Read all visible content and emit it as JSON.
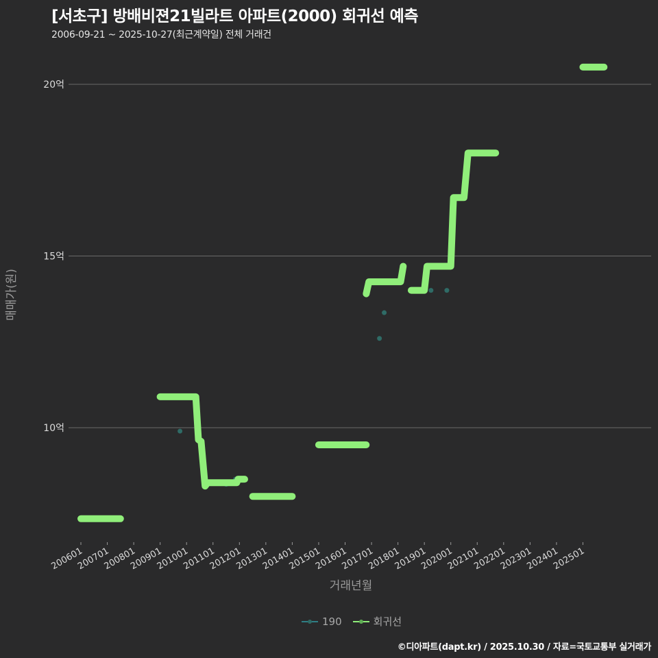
{
  "header": {
    "title": "[서초구] 방배비젼21빌라트 아파트(2000) 회귀선 예측",
    "subtitle": "2006-09-21 ~ 2025-10-27(최근계약일) 전체 거래건"
  },
  "legend": {
    "items": [
      {
        "label": "190",
        "color": "#2f7f86"
      },
      {
        "label": "회귀선",
        "color": "#90ee7a"
      }
    ]
  },
  "footer": {
    "credit": "©디아파트(dapt.kr) / 2025.10.30 / 자료=국토교통부 실거래가"
  },
  "colors": {
    "background": "#2a2a2b",
    "grid": "#6a6a6a",
    "regression": "#90ee7a",
    "points": "#2f6b66"
  },
  "chart_data": {
    "type": "line",
    "title": "[서초구] 방배비젼21빌라트 아파트(2000) 회귀선 예측",
    "subtitle": "2006-09-21 ~ 2025-10-27(최근계약일) 전체 거래건",
    "xlabel": "거래년월",
    "ylabel": "매매가(원)",
    "x_ticks": [
      "200601",
      "200701",
      "200801",
      "200901",
      "201001",
      "201101",
      "201201",
      "201301",
      "201401",
      "201501",
      "201601",
      "201701",
      "201801",
      "201901",
      "202001",
      "202101",
      "202201",
      "202301",
      "202401",
      "202501"
    ],
    "y_ticks": [
      {
        "value": 10,
        "label": "10억"
      },
      {
        "value": 15,
        "label": "15억"
      },
      {
        "value": 20,
        "label": "20억"
      }
    ],
    "ylim": [
      6.7,
      21.0
    ],
    "xlim": [
      2005.5,
      2026.3
    ],
    "grid": "horizontal",
    "legend_position": "bottom",
    "series": [
      {
        "name": "회귀선",
        "unit": "억",
        "segments": [
          [
            [
              2006.0,
              7.35
            ],
            [
              2007.5,
              7.35
            ]
          ],
          [
            [
              2009.0,
              10.9
            ],
            [
              2010.35,
              10.9
            ],
            [
              2010.45,
              9.65
            ],
            [
              2010.55,
              9.6
            ],
            [
              2010.7,
              8.3
            ],
            [
              2010.8,
              8.4
            ],
            [
              2011.9,
              8.4
            ],
            [
              2011.95,
              8.5
            ],
            [
              2012.2,
              8.5
            ]
          ],
          [
            [
              2012.5,
              8.0
            ],
            [
              2014.0,
              8.0
            ]
          ],
          [
            [
              2015.0,
              9.5
            ],
            [
              2016.8,
              9.5
            ]
          ],
          [
            [
              2016.8,
              13.9
            ],
            [
              2016.9,
              14.25
            ],
            [
              2018.1,
              14.25
            ],
            [
              2018.2,
              14.7
            ]
          ],
          [
            [
              2018.5,
              14.0
            ],
            [
              2019.0,
              14.0
            ],
            [
              2019.1,
              14.7
            ],
            [
              2020.0,
              14.7
            ],
            [
              2020.1,
              16.7
            ],
            [
              2020.5,
              16.7
            ],
            [
              2020.65,
              18.0
            ],
            [
              2021.7,
              18.0
            ]
          ],
          [
            [
              2025.0,
              20.5
            ],
            [
              2025.8,
              20.5
            ]
          ]
        ]
      },
      {
        "name": "190",
        "unit": "억",
        "points": [
          [
            2009.75,
            9.9
          ],
          [
            2011.5,
            8.35
          ],
          [
            2011.85,
            8.5
          ],
          [
            2017.3,
            12.6
          ],
          [
            2017.48,
            13.35
          ],
          [
            2019.25,
            14.0
          ],
          [
            2019.85,
            14.0
          ]
        ]
      }
    ]
  }
}
